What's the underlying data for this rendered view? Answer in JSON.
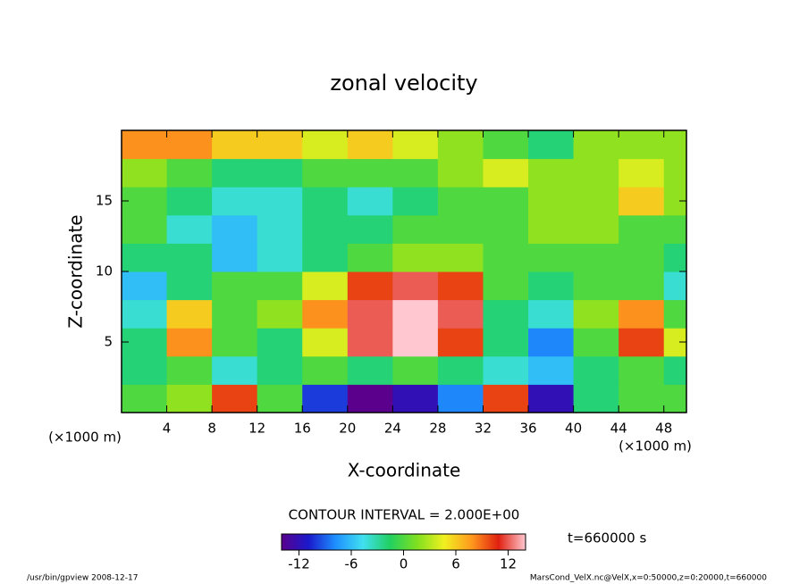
{
  "chart_data": {
    "type": "contour",
    "title": "zonal velocity",
    "xlabel": "X-coordinate",
    "ylabel": "Z-coordinate",
    "xunits": "(×1000 m)",
    "yunits": "(×1000 m)",
    "xlim": [
      0,
      50
    ],
    "ylim": [
      0,
      20
    ],
    "xticks": [
      4,
      8,
      12,
      16,
      20,
      24,
      28,
      32,
      36,
      40,
      44,
      48
    ],
    "yticks": [
      5,
      10,
      15
    ],
    "x": [
      2,
      6,
      10,
      14,
      18,
      22,
      26,
      30,
      34,
      38,
      42,
      46,
      50
    ],
    "y": [
      1,
      3,
      5,
      7,
      9,
      11,
      13,
      15,
      17,
      19
    ],
    "z": [
      [
        0,
        2,
        10,
        0,
        -10,
        -14,
        -12,
        -8,
        10,
        -12,
        -2,
        0,
        0
      ],
      [
        -2,
        0,
        -4,
        -2,
        0,
        -2,
        0,
        -2,
        -4,
        -6,
        -2,
        0,
        -2
      ],
      [
        -2,
        8,
        0,
        -2,
        4,
        12,
        14,
        10,
        -2,
        -8,
        0,
        10,
        4
      ],
      [
        -4,
        6,
        0,
        2,
        8,
        12,
        14,
        12,
        -2,
        -4,
        2,
        8,
        0
      ],
      [
        -6,
        -2,
        0,
        0,
        4,
        10,
        12,
        10,
        0,
        -2,
        0,
        0,
        -4
      ],
      [
        -2,
        -2,
        -6,
        -4,
        -2,
        0,
        2,
        2,
        0,
        0,
        0,
        0,
        -2
      ],
      [
        0,
        -4,
        -6,
        -4,
        -2,
        -2,
        0,
        0,
        0,
        2,
        2,
        0,
        0
      ],
      [
        0,
        -2,
        -4,
        -4,
        -2,
        -4,
        -2,
        0,
        0,
        2,
        2,
        6,
        2
      ],
      [
        2,
        0,
        -2,
        -2,
        0,
        0,
        0,
        2,
        4,
        2,
        2,
        4,
        2
      ],
      [
        8,
        8,
        6,
        6,
        4,
        6,
        4,
        2,
        0,
        -2,
        2,
        2,
        2
      ]
    ],
    "zlim": [
      -14,
      14
    ],
    "zticks": [
      -12,
      -6,
      0,
      6,
      12
    ],
    "colors": [
      "#5a008c",
      "#1a1acc",
      "#1e90ff",
      "#40e0f0",
      "#20d060",
      "#80e020",
      "#f0f020",
      "#ff9a1e",
      "#e02010",
      "#ffc8d0"
    ],
    "contour_interval": "CONTOUR INTERVAL = 2.000E+00",
    "time": "t=660000 s",
    "footer_left": "/usr/bin/gpview   2008-12-17",
    "footer_right": "MarsCond_VelX.nc@VelX,x=0:50000,z=0:20000,t=660000"
  }
}
